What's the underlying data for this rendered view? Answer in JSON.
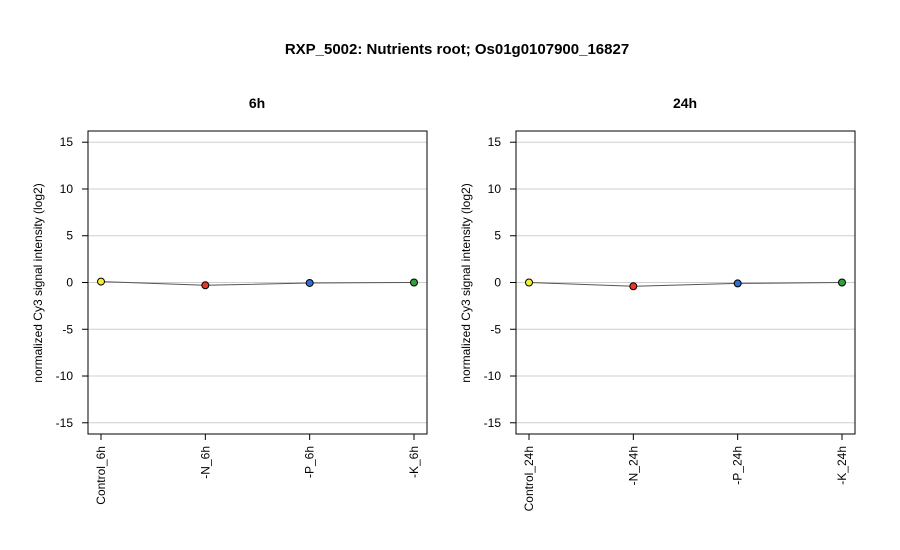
{
  "figure": {
    "title": "RXP_5002: Nutrients root; Os01g0107900_16827"
  },
  "chart_data": [
    {
      "type": "line",
      "title": "6h",
      "xlabel": "",
      "ylabel": "normalized Cy3 signal intensity (log2)",
      "categories": [
        "Control_6h",
        "-N_6h",
        "-P_6h",
        "-K_6h"
      ],
      "values": [
        0.1,
        -0.3,
        -0.05,
        0.0
      ],
      "point_colors": [
        "#f5f032",
        "#e8372a",
        "#2f6fd8",
        "#2fa23a"
      ],
      "ylim": [
        -16.2,
        16.2
      ],
      "yticks": [
        -15,
        -10,
        -5,
        0,
        5,
        10,
        15
      ],
      "grid": true
    },
    {
      "type": "line",
      "title": "24h",
      "xlabel": "",
      "ylabel": "normalized Cy3 signal intensity (log2)",
      "categories": [
        "Control_24h",
        "-N_24h",
        "-P_24h",
        "-K_24h"
      ],
      "values": [
        0.0,
        -0.4,
        -0.1,
        0.0
      ],
      "point_colors": [
        "#f5f032",
        "#e8372a",
        "#2f6fd8",
        "#2fa23a"
      ],
      "ylim": [
        -16.2,
        16.2
      ],
      "yticks": [
        -15,
        -10,
        -5,
        0,
        5,
        10,
        15
      ],
      "grid": true
    }
  ]
}
